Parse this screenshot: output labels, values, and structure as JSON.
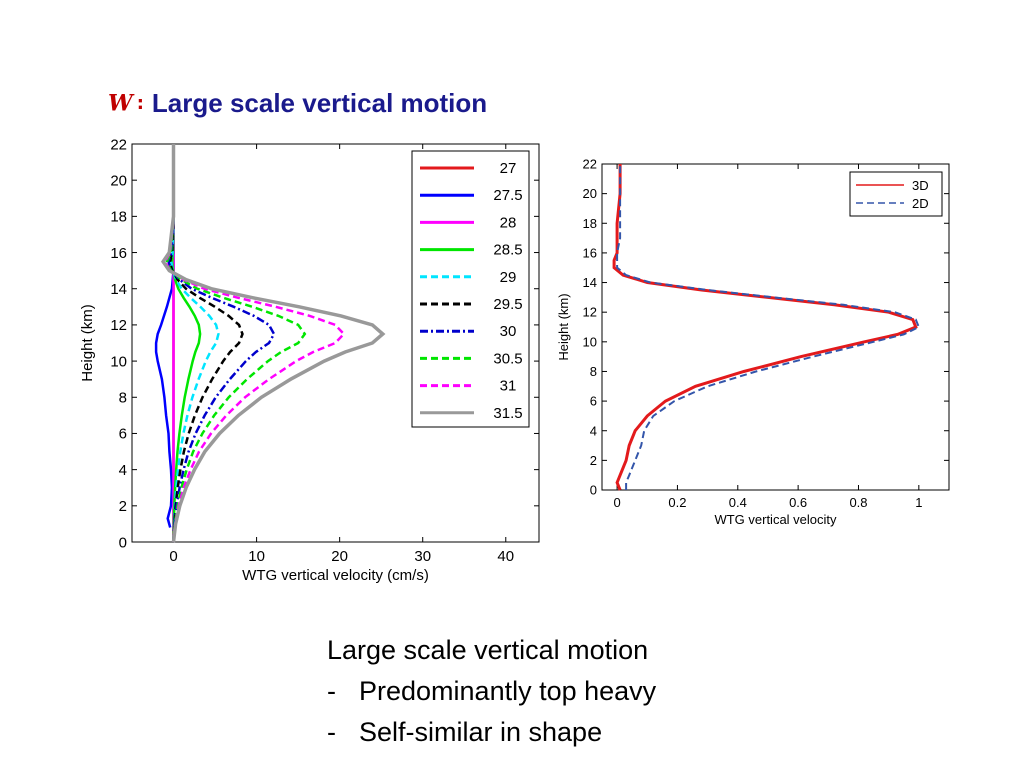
{
  "slide": {
    "title_symbol": "W",
    "title_colon": ":",
    "title_text": "Large scale vertical motion",
    "bullets_heading": "Large scale vertical motion",
    "bullets": [
      {
        "dash": "-",
        "text": "Predominantly top heavy"
      },
      {
        "dash": "-",
        "text": "Self-similar in shape"
      }
    ]
  },
  "chart_data": [
    {
      "type": "line",
      "xlabel": "WTG vertical velocity (cm/s)",
      "ylabel": "Height (km)",
      "xlim": [
        -5,
        44
      ],
      "ylim": [
        0,
        22
      ],
      "xticks": [
        0,
        10,
        20,
        30,
        40
      ],
      "yticks": [
        0,
        2,
        4,
        6,
        8,
        10,
        12,
        14,
        16,
        18,
        20,
        22
      ],
      "legend_position": "top-right",
      "series": [
        {
          "name": "27",
          "color": "#e31a1c",
          "dash": "solid",
          "peak": 0.0,
          "y": [
            0,
            1,
            2,
            3,
            4,
            5,
            6,
            7,
            8,
            9,
            10,
            11,
            12,
            13,
            14,
            15,
            16,
            18,
            20,
            22
          ],
          "x": [
            0,
            0,
            0,
            0,
            0,
            0,
            0,
            0,
            0,
            0,
            0,
            0,
            0,
            0,
            0,
            0,
            0,
            0,
            0,
            0
          ]
        },
        {
          "name": "27.5",
          "color": "#0000ff",
          "dash": "solid",
          "peak": -2.1,
          "y": [
            0.8,
            1.3,
            2,
            3,
            4,
            5,
            6,
            7,
            8,
            9,
            10,
            10.5,
            11,
            11.5,
            12,
            13,
            14,
            15,
            16,
            18,
            20,
            22
          ],
          "x": [
            -0.4,
            -0.7,
            -0.3,
            -0.2,
            -0.3,
            -0.5,
            -0.6,
            -0.9,
            -1.1,
            -1.4,
            -1.9,
            -2.1,
            -2.1,
            -1.9,
            -1.5,
            -0.8,
            -0.2,
            0,
            0,
            0,
            0,
            0
          ]
        },
        {
          "name": "28",
          "color": "#ff00ff",
          "dash": "solid",
          "peak": 0.0,
          "y": [
            0,
            4,
            8,
            12,
            14,
            16,
            18,
            20,
            22
          ],
          "x": [
            0,
            0,
            0,
            0,
            0,
            0,
            0,
            0,
            0
          ]
        },
        {
          "name": "28.5",
          "color": "#00e600",
          "dash": "solid",
          "peak": 3.2
        },
        {
          "name": "29",
          "color": "#00e5ff",
          "dash": "dash",
          "peak": 5.4
        },
        {
          "name": "29.5",
          "color": "#000000",
          "dash": "dash",
          "peak": 8.3
        },
        {
          "name": "30",
          "color": "#0000cc",
          "dash": "dashdot",
          "peak": 12.1
        },
        {
          "name": "30.5",
          "color": "#00e600",
          "dash": "dash",
          "peak": 15.8
        },
        {
          "name": "31",
          "color": "#ff00ff",
          "dash": "dash",
          "peak": 20.5
        },
        {
          "name": "31.5",
          "color": "#999999",
          "dash": "solid",
          "peak": 25.2
        }
      ],
      "profile_shape": {
        "y": [
          0,
          1,
          2,
          3,
          4,
          5,
          6,
          7,
          8,
          9,
          10,
          10.5,
          11,
          11.5,
          12,
          12.5,
          13,
          13.5,
          14,
          14.5,
          15,
          15.5,
          16,
          18,
          20,
          22
        ],
        "x": [
          0,
          0.01,
          0.03,
          0.06,
          0.1,
          0.15,
          0.22,
          0.31,
          0.42,
          0.56,
          0.72,
          0.82,
          0.95,
          1.0,
          0.95,
          0.8,
          0.6,
          0.38,
          0.18,
          0.06,
          -0.02,
          -0.05,
          -0.02,
          0,
          0,
          0
        ]
      }
    },
    {
      "type": "line",
      "xlabel": "WTG vertical velocity",
      "ylabel": "Height (km)",
      "xlim": [
        -0.05,
        1.1
      ],
      "ylim": [
        0,
        22
      ],
      "xticks": [
        0,
        0.2,
        0.4,
        0.6,
        0.8,
        1
      ],
      "yticks": [
        0,
        2,
        4,
        6,
        8,
        10,
        12,
        14,
        16,
        18,
        20,
        22
      ],
      "legend_position": "top-right",
      "series": [
        {
          "name": "3D",
          "color": "#e31a1c",
          "dash": "solid",
          "y": [
            0,
            0.5,
            1,
            1.5,
            2,
            3,
            4,
            5,
            6,
            7,
            8,
            9,
            10,
            10.5,
            11,
            11.5,
            12,
            12.5,
            13,
            13.5,
            14,
            14.5,
            15,
            15.5,
            16,
            17,
            18,
            20,
            22
          ],
          "x": [
            0.01,
            0,
            0.01,
            0.02,
            0.03,
            0.04,
            0.06,
            0.1,
            0.16,
            0.26,
            0.42,
            0.61,
            0.82,
            0.93,
            0.99,
            0.98,
            0.9,
            0.72,
            0.5,
            0.28,
            0.1,
            0.02,
            -0.01,
            -0.01,
            0,
            0,
            0,
            0.01,
            0.01
          ]
        },
        {
          "name": "2D",
          "color": "#3355aa",
          "dash": "dash",
          "y": [
            0,
            0.5,
            1,
            1.5,
            2,
            3,
            4,
            5,
            6,
            7,
            8,
            9,
            10,
            10.5,
            11,
            11.5,
            12,
            12.5,
            13,
            13.5,
            14,
            14.5,
            15,
            15.5,
            16,
            17,
            18,
            20,
            22
          ],
          "x": [
            0.03,
            0.03,
            0.04,
            0.05,
            0.06,
            0.08,
            0.09,
            0.12,
            0.19,
            0.3,
            0.46,
            0.65,
            0.85,
            0.95,
            1.0,
            0.99,
            0.92,
            0.75,
            0.52,
            0.3,
            0.11,
            0.03,
            0,
            0,
            0,
            0.01,
            0.01,
            0.01,
            0.01
          ]
        }
      ]
    }
  ]
}
